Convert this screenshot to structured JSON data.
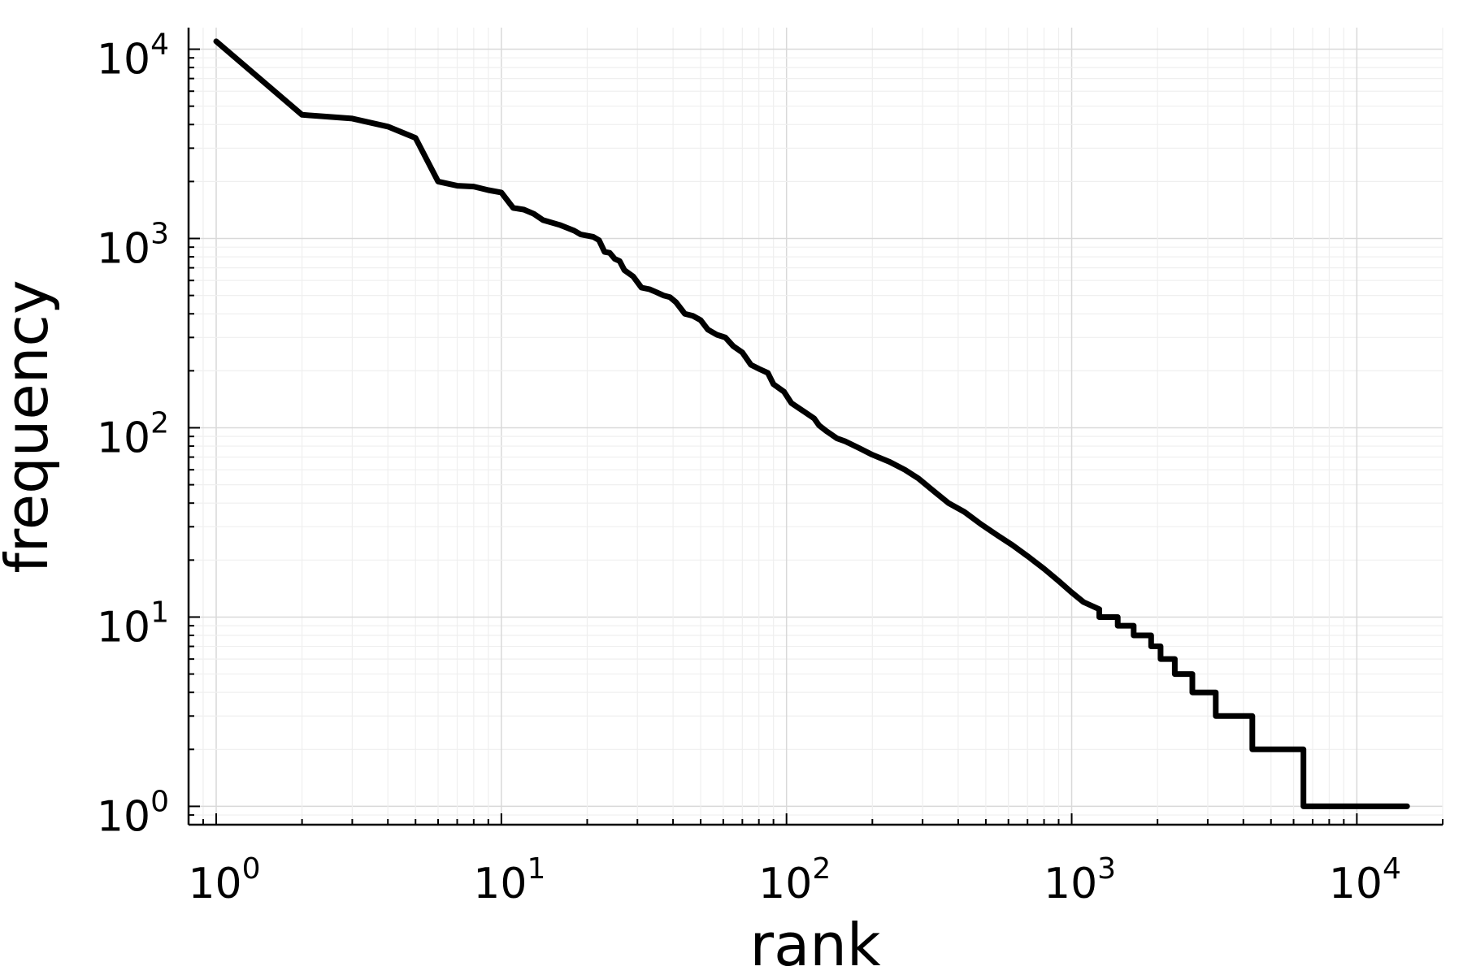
{
  "chart_data": {
    "type": "line",
    "title": "",
    "xlabel": "rank",
    "ylabel": "frequency",
    "xscale": "log",
    "yscale": "log",
    "xlim": [
      0.8,
      20000
    ],
    "ylim": [
      0.8,
      13000
    ],
    "grid": true,
    "legend": "none",
    "line_color": "#000000",
    "x_ticks": [
      {
        "value": 1,
        "base": "10",
        "exp": "0"
      },
      {
        "value": 10,
        "base": "10",
        "exp": "1"
      },
      {
        "value": 100,
        "base": "10",
        "exp": "2"
      },
      {
        "value": 1000,
        "base": "10",
        "exp": "3"
      },
      {
        "value": 10000,
        "base": "10",
        "exp": "4"
      }
    ],
    "y_ticks": [
      {
        "value": 1,
        "base": "10",
        "exp": "0"
      },
      {
        "value": 10,
        "base": "10",
        "exp": "1"
      },
      {
        "value": 100,
        "base": "10",
        "exp": "2"
      },
      {
        "value": 1000,
        "base": "10",
        "exp": "3"
      },
      {
        "value": 10000,
        "base": "10",
        "exp": "4"
      }
    ],
    "series": [
      {
        "points": [
          [
            1,
            11000
          ],
          [
            2,
            4500
          ],
          [
            3,
            4300
          ],
          [
            4,
            3900
          ],
          [
            5,
            3400
          ],
          [
            6,
            2000
          ],
          [
            7,
            1900
          ],
          [
            8,
            1880
          ],
          [
            9,
            1800
          ],
          [
            10,
            1750
          ],
          [
            11,
            1450
          ],
          [
            12,
            1420
          ],
          [
            13,
            1350
          ],
          [
            14,
            1250
          ],
          [
            16,
            1180
          ],
          [
            18,
            1100
          ],
          [
            19,
            1050
          ],
          [
            21,
            1020
          ],
          [
            22,
            980
          ],
          [
            23,
            850
          ],
          [
            24,
            840
          ],
          [
            25,
            780
          ],
          [
            26,
            760
          ],
          [
            27,
            680
          ],
          [
            29,
            630
          ],
          [
            31,
            550
          ],
          [
            33,
            540
          ],
          [
            35,
            520
          ],
          [
            37,
            500
          ],
          [
            39,
            490
          ],
          [
            41,
            460
          ],
          [
            44,
            400
          ],
          [
            47,
            390
          ],
          [
            50,
            370
          ],
          [
            53,
            330
          ],
          [
            57,
            310
          ],
          [
            61,
            300
          ],
          [
            65,
            270
          ],
          [
            70,
            250
          ],
          [
            75,
            215
          ],
          [
            80,
            205
          ],
          [
            86,
            195
          ],
          [
            90,
            170
          ],
          [
            98,
            155
          ],
          [
            104,
            135
          ],
          [
            115,
            122
          ],
          [
            125,
            112
          ],
          [
            130,
            103
          ],
          [
            138,
            96
          ],
          [
            150,
            88
          ],
          [
            160,
            85
          ],
          [
            180,
            78
          ],
          [
            200,
            72
          ],
          [
            230,
            66
          ],
          [
            260,
            60
          ],
          [
            290,
            54
          ],
          [
            330,
            46
          ],
          [
            370,
            40
          ],
          [
            420,
            36
          ],
          [
            480,
            31
          ],
          [
            550,
            27
          ],
          [
            620,
            24
          ],
          [
            700,
            21
          ],
          [
            800,
            18
          ],
          [
            900,
            15.5
          ],
          [
            1000,
            13.5
          ],
          [
            1100,
            12
          ],
          [
            1250,
            11
          ],
          [
            1250,
            10
          ],
          [
            1450,
            10
          ],
          [
            1450,
            9
          ],
          [
            1650,
            9
          ],
          [
            1650,
            8
          ],
          [
            1900,
            8
          ],
          [
            1900,
            7
          ],
          [
            2050,
            7
          ],
          [
            2050,
            6
          ],
          [
            2300,
            6
          ],
          [
            2300,
            5
          ],
          [
            2650,
            5
          ],
          [
            2650,
            4
          ],
          [
            3200,
            4
          ],
          [
            3200,
            3
          ],
          [
            4300,
            3
          ],
          [
            4300,
            2
          ],
          [
            6500,
            2
          ],
          [
            6500,
            1
          ],
          [
            15000,
            1
          ]
        ]
      }
    ]
  }
}
